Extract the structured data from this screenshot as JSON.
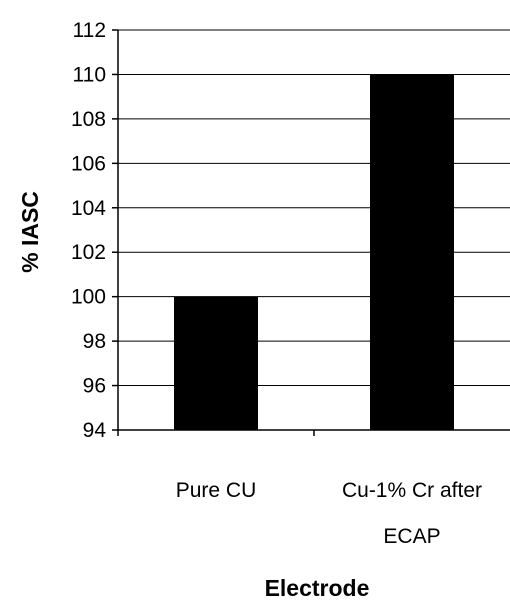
{
  "chart_data": {
    "type": "bar",
    "categories": [
      "Pure CU",
      "Cu-1% Cr after ECAP"
    ],
    "category_lines": [
      [
        "Pure CU"
      ],
      [
        "Cu-1% Cr after",
        "ECAP"
      ]
    ],
    "values": [
      100,
      110
    ],
    "title": "",
    "xlabel": "Electrode",
    "ylabel": "% IASC",
    "ylim": [
      94,
      112
    ],
    "yticks": [
      94,
      96,
      98,
      100,
      102,
      104,
      106,
      108,
      110,
      112
    ],
    "grid": true,
    "legend": "none",
    "bar_color": "#000000"
  }
}
